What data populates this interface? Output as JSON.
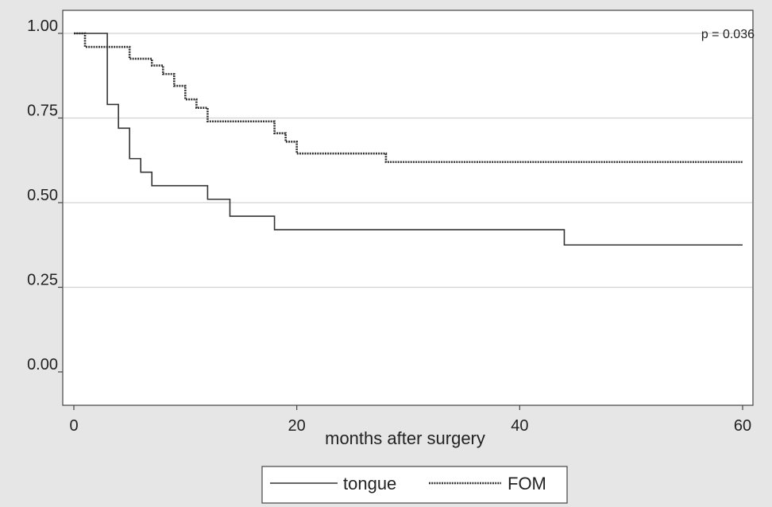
{
  "chart_data": {
    "type": "line",
    "title": "",
    "xlabel": "months after surgery",
    "ylabel": "",
    "xlim": [
      0,
      60
    ],
    "ylim": [
      0,
      1
    ],
    "x_ticks": [
      "0",
      "20",
      "40",
      "60"
    ],
    "y_ticks": [
      "0.00",
      "0.25",
      "0.50",
      "0.75",
      "1.00"
    ],
    "grid": "horizontal",
    "legend_position": "bottom",
    "annotation": "p = 0.036",
    "series": [
      {
        "name": "tongue",
        "style": "solid",
        "color": "#333333",
        "x": [
          0,
          3,
          4,
          5,
          6,
          7,
          12,
          14,
          18,
          44,
          60
        ],
        "y": [
          1.0,
          0.79,
          0.72,
          0.63,
          0.59,
          0.55,
          0.51,
          0.46,
          0.42,
          0.375,
          0.375
        ]
      },
      {
        "name": "FOM",
        "style": "dotted",
        "color": "#333333",
        "x": [
          0,
          1,
          5,
          7,
          8,
          9,
          10,
          11,
          12,
          18,
          19,
          20,
          28,
          60
        ],
        "y": [
          1.0,
          0.96,
          0.925,
          0.905,
          0.88,
          0.845,
          0.805,
          0.78,
          0.74,
          0.705,
          0.68,
          0.645,
          0.62,
          0.62
        ]
      }
    ]
  }
}
